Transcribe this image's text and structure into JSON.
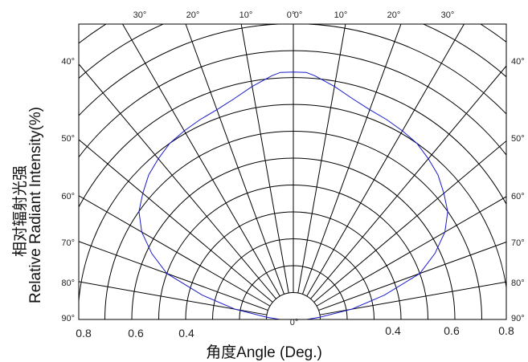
{
  "chart_data": {
    "type": "line",
    "subtype": "polar-half",
    "ylabel_line1": "相对辐射光强",
    "ylabel_line2": "Relative   Radiant  Intensity(%)",
    "xlabel": "角度Angle (Deg.)",
    "top_angle_labels": [
      "30°",
      "20°",
      "10°",
      "0°",
      "0°",
      "10°",
      "20°",
      "30°"
    ],
    "left_angle_labels": [
      "40°",
      "50°",
      "60°",
      "70°",
      "80°",
      "90°"
    ],
    "right_angle_labels": [
      "40°",
      "50°",
      "60°",
      "70°",
      "80°",
      "90°"
    ],
    "bottom_angle_label": "0°",
    "radial_labels_left": [
      "0.8",
      "0.6",
      "0.4"
    ],
    "radial_labels_right": [
      "0.4",
      "0.6",
      "0.8"
    ],
    "radial_range": [
      0,
      1
    ],
    "angle_range_deg": [
      -90,
      90
    ],
    "line_color": "#1a1acc",
    "grid": true,
    "series": [
      {
        "theta_deg": [
          -90,
          -85,
          -80,
          -75,
          -70,
          -65,
          -60,
          -55,
          -50,
          -45,
          -40,
          -35,
          -30,
          -25,
          -20,
          -15,
          -10,
          -5,
          -3,
          0,
          3,
          5,
          10,
          15,
          20,
          25,
          30,
          35,
          40,
          45,
          50,
          55,
          60,
          65,
          70,
          75,
          80,
          85,
          90
        ],
        "r": [
          0.05,
          0.1,
          0.22,
          0.35,
          0.5,
          0.58,
          0.65,
          0.7,
          0.73,
          0.76,
          0.78,
          0.8,
          0.81,
          0.82,
          0.83,
          0.85,
          0.88,
          0.91,
          0.92,
          0.92,
          0.92,
          0.91,
          0.88,
          0.85,
          0.83,
          0.82,
          0.81,
          0.8,
          0.78,
          0.76,
          0.73,
          0.7,
          0.65,
          0.58,
          0.5,
          0.35,
          0.22,
          0.1,
          0.05
        ]
      }
    ]
  }
}
